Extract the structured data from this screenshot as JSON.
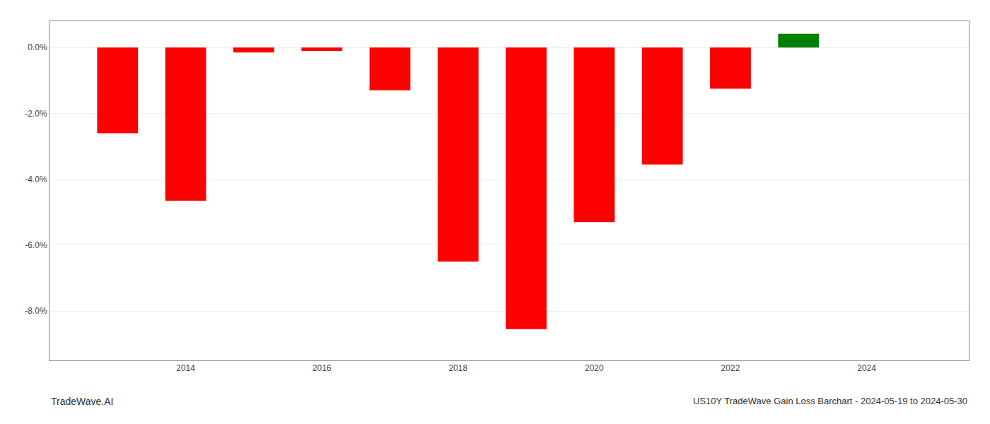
{
  "chart_data": {
    "type": "bar",
    "x": [
      2013,
      2014,
      2015,
      2016,
      2017,
      2018,
      2019,
      2020,
      2021,
      2022,
      2023
    ],
    "values": [
      -2.6,
      -4.65,
      -0.15,
      -0.1,
      -1.3,
      -6.5,
      -8.55,
      -5.3,
      -3.55,
      -1.25,
      0.42
    ],
    "colors": [
      "#ff0000",
      "#ff0000",
      "#ff0000",
      "#ff0000",
      "#ff0000",
      "#ff0000",
      "#ff0000",
      "#ff0000",
      "#ff0000",
      "#ff0000",
      "#008000"
    ],
    "xlim": [
      2012.0,
      2025.5
    ],
    "xticks": [
      2014,
      2016,
      2018,
      2020,
      2022,
      2024
    ],
    "ylim": [
      -9.5,
      0.8
    ],
    "yticks": [
      {
        "value": 0.0,
        "label": "0.0%"
      },
      {
        "value": -2.0,
        "label": "-2.0%"
      },
      {
        "value": -4.0,
        "label": "-4.0%"
      },
      {
        "value": -6.0,
        "label": "-6.0%"
      },
      {
        "value": -8.0,
        "label": "-8.0%"
      }
    ],
    "grid": true,
    "annotations": [
      "TradeWave.AI",
      "US10Y TradeWave Gain Loss Barchart - 2024-05-19 to 2024-05-30"
    ]
  }
}
